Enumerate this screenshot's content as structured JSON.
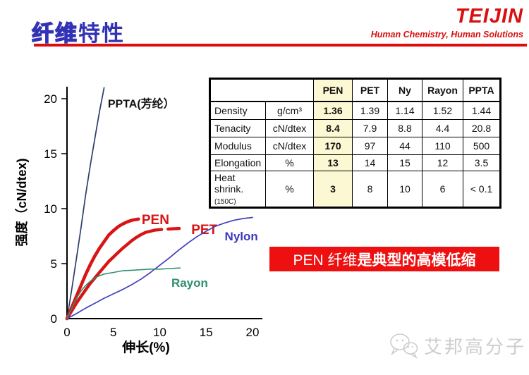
{
  "header": {
    "title_outline": "纤维",
    "title_solid": "特性",
    "logo": "TEIJIN",
    "tagline": "Human Chemistry, Human Solutions"
  },
  "colors": {
    "accent_red": "#e00b0b",
    "title_blue": "#3232b4",
    "banner_red": "#ee1010",
    "table_highlight_yellow": "#fcf8d4",
    "table_red_value": "#d42020"
  },
  "chart_data": {
    "type": "line",
    "title": "",
    "xlabel": "伸长(%)",
    "ylabel": "强度（cN/dtex)",
    "xlim": [
      0,
      20
    ],
    "ylim": [
      0,
      21
    ],
    "xticks": [
      0,
      5,
      10,
      15,
      20
    ],
    "yticks": [
      0,
      5,
      10,
      15,
      20
    ],
    "grid": false,
    "legend": "inline-labels",
    "series": [
      {
        "name": "PPTA(芳纶）",
        "color": "#2a3e6e",
        "width": 1.7,
        "label_color": "#111111",
        "label_size": 16,
        "label": {
          "x": 4.4,
          "y": 19.2
        },
        "points": [
          [
            0,
            0
          ],
          [
            0.5,
            2.6
          ],
          [
            1,
            5.4
          ],
          [
            1.5,
            8.2
          ],
          [
            2,
            11.2
          ],
          [
            2.5,
            13.9
          ],
          [
            3,
            16.4
          ],
          [
            3.5,
            18.8
          ],
          [
            4,
            21
          ]
        ]
      },
      {
        "name": "PEN",
        "color": "#d91414",
        "width": 4.6,
        "label_color": "#d91414",
        "label_size": 19,
        "label": {
          "x": 8.05,
          "y": 8.6
        },
        "points": [
          [
            0,
            0
          ],
          [
            0.5,
            1.0
          ],
          [
            1,
            2.0
          ],
          [
            1.5,
            3.0
          ],
          [
            2,
            4.0
          ],
          [
            2.5,
            4.9
          ],
          [
            3,
            5.7
          ],
          [
            3.5,
            6.4
          ],
          [
            4,
            7.0
          ],
          [
            4.5,
            7.6
          ],
          [
            5,
            8.0
          ],
          [
            5.5,
            8.35
          ],
          [
            6,
            8.6
          ],
          [
            6.5,
            8.8
          ],
          [
            7,
            8.95
          ],
          [
            7.7,
            9.05
          ]
        ]
      },
      {
        "name": "PET",
        "color": "#d91414",
        "width": 4.4,
        "label_color": "#d91414",
        "label_size": 19,
        "label": {
          "x": 13.4,
          "y": 7.7
        },
        "points": [
          [
            0,
            0
          ],
          [
            0.5,
            0.7
          ],
          [
            1,
            1.4
          ],
          [
            1.5,
            2.0
          ],
          [
            2,
            2.6
          ],
          [
            2.5,
            3.2
          ],
          [
            3,
            3.7
          ],
          [
            3.5,
            4.2
          ],
          [
            4,
            4.7
          ],
          [
            4.5,
            5.2
          ],
          [
            5,
            5.6
          ],
          [
            5.5,
            6.0
          ],
          [
            6,
            6.4
          ],
          [
            6.5,
            6.75
          ],
          [
            7,
            7.1
          ],
          [
            7.5,
            7.4
          ],
          [
            8,
            7.65
          ],
          [
            8.5,
            7.85
          ],
          [
            9,
            7.95
          ],
          [
            9.5,
            8.05
          ],
          [
            10.2,
            8.1
          ]
        ]
      },
      {
        "name": "Nylon",
        "color": "#4040bf",
        "width": 1.7,
        "label_color": "#3a3abc",
        "label_size": 17,
        "label": {
          "x": 17.0,
          "y": 7.1
        },
        "points": [
          [
            0,
            0
          ],
          [
            1,
            0.45
          ],
          [
            2,
            0.95
          ],
          [
            3,
            1.4
          ],
          [
            4,
            1.85
          ],
          [
            5,
            2.25
          ],
          [
            6,
            2.65
          ],
          [
            7,
            3.1
          ],
          [
            8,
            3.6
          ],
          [
            9,
            4.2
          ],
          [
            10,
            4.85
          ],
          [
            11,
            5.5
          ],
          [
            12,
            6.2
          ],
          [
            13,
            6.85
          ],
          [
            14,
            7.45
          ],
          [
            15,
            7.95
          ],
          [
            16,
            8.4
          ],
          [
            17,
            8.7
          ],
          [
            18,
            8.95
          ],
          [
            19,
            9.1
          ],
          [
            20,
            9.2
          ]
        ]
      },
      {
        "name": "Rayon",
        "color": "#2e8f72",
        "width": 1.6,
        "label_color": "#2e8f72",
        "label_size": 17,
        "label": {
          "x": 11.25,
          "y": 2.9
        },
        "points": [
          [
            0,
            0
          ],
          [
            0.5,
            0.9
          ],
          [
            1,
            1.8
          ],
          [
            1.5,
            2.5
          ],
          [
            2,
            3.0
          ],
          [
            2.5,
            3.4
          ],
          [
            3,
            3.7
          ],
          [
            3.5,
            3.9
          ],
          [
            4,
            4.05
          ],
          [
            5,
            4.2
          ],
          [
            6,
            4.35
          ],
          [
            7,
            4.4
          ],
          [
            8,
            4.45
          ],
          [
            9,
            4.5
          ],
          [
            10,
            4.5
          ],
          [
            11,
            4.55
          ],
          [
            12.2,
            4.6
          ]
        ]
      }
    ],
    "extra_segments": [
      {
        "series": "PET",
        "color": "#d91414",
        "width": 4.4,
        "points": [
          [
            10.9,
            8.15
          ],
          [
            12.1,
            8.2
          ]
        ]
      }
    ]
  },
  "table": {
    "col_headers": [
      "PEN",
      "PET",
      "Ny",
      "Rayon",
      "PPTA"
    ],
    "rows": [
      {
        "label": "Density",
        "label_note": "",
        "unit": "g/cm³",
        "values": [
          "1.36",
          "1.39",
          "1.14",
          "1.52",
          "1.44"
        ],
        "pen_red": false
      },
      {
        "label": "Tenacity",
        "label_note": "",
        "unit": "cN/dtex",
        "values": [
          "8.4",
          "7.9",
          "8.8",
          "4.4",
          "20.8"
        ],
        "pen_red": true
      },
      {
        "label": "Modulus",
        "label_note": "",
        "unit": "cN/dtex",
        "values": [
          "170",
          "97",
          "44",
          "110",
          "500"
        ],
        "pen_red": true
      },
      {
        "label": "Elongation",
        "label_note": "",
        "unit": "%",
        "values": [
          "13",
          "14",
          "15",
          "12",
          "3.5"
        ],
        "pen_red": false
      },
      {
        "label": "Heat shrink.",
        "label_note": "(150C)",
        "unit": "%",
        "values": [
          "3",
          "8",
          "10",
          "6",
          "< 0.1"
        ],
        "pen_red": true
      }
    ]
  },
  "banner": {
    "text_light": "PEN 纤维",
    "text_bold": "是典型的高模低缩"
  },
  "watermark": {
    "icon": "wechat-icon",
    "text": "艾邦高分子"
  }
}
